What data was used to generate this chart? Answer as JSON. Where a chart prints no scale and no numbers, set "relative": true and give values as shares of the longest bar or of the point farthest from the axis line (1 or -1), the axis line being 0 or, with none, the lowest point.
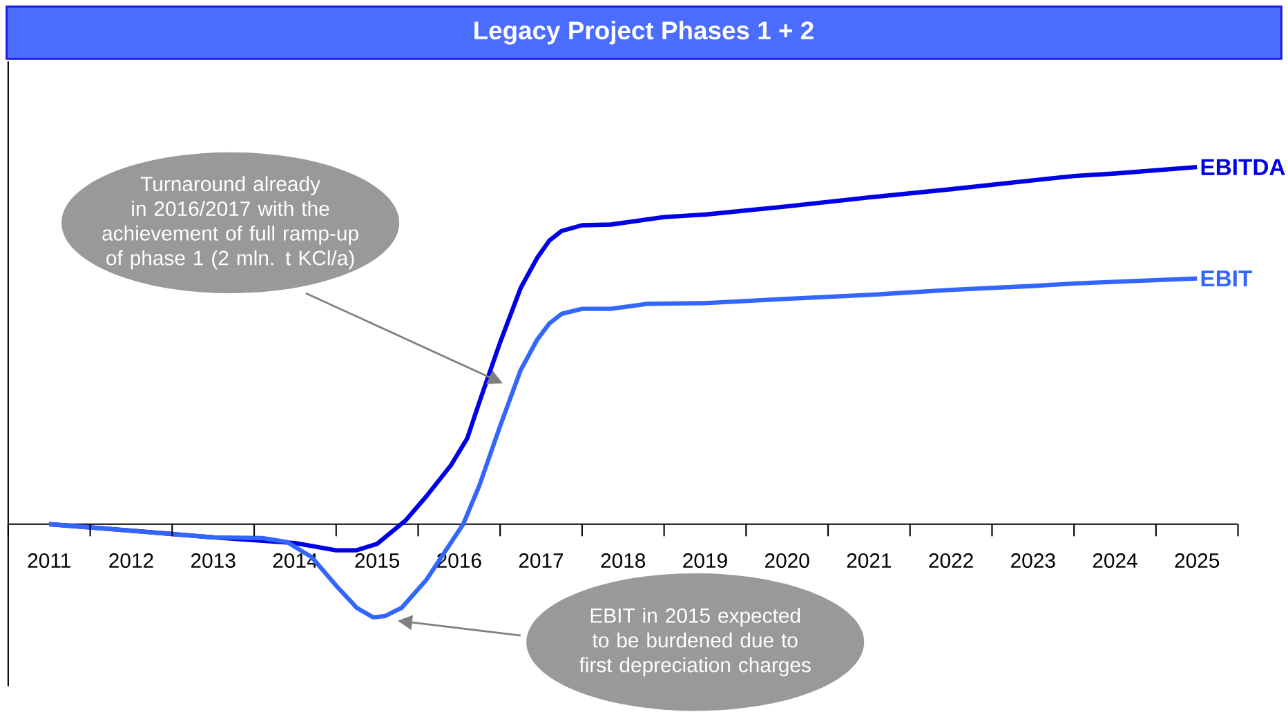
{
  "chart_data": {
    "type": "line",
    "title": "Legacy Project Phases 1 + 2",
    "relative": true,
    "legend": false,
    "marker": "none",
    "line_style": "solid",
    "tick_labels": "x",
    "xlim": [
      2010.5,
      2025.5
    ],
    "xticks": [
      2011,
      2012,
      2013,
      2014,
      2015,
      2016,
      2017,
      2018,
      2019,
      2020,
      2021,
      2022,
      2023,
      2024,
      2025
    ],
    "series": [
      {
        "name": "EBITDA",
        "color": "#0000e6",
        "x": [
          2011,
          2012,
          2013,
          2014,
          2014.5,
          2014.75,
          2015,
          2015.35,
          2015.6,
          2015.9,
          2016.1,
          2016.25,
          2016.5,
          2016.75,
          2016.95,
          2017.1,
          2017.25,
          2017.5,
          2017.85,
          2018.5,
          2019,
          2020,
          2021,
          2022,
          2023,
          2023.5,
          2024,
          2025
        ],
        "values": [
          0,
          -0.018,
          -0.037,
          -0.053,
          -0.073,
          -0.073,
          -0.055,
          0.011,
          0.078,
          0.165,
          0.241,
          0.344,
          0.509,
          0.661,
          0.745,
          0.794,
          0.821,
          0.837,
          0.839,
          0.86,
          0.867,
          0.89,
          0.915,
          0.938,
          0.963,
          0.975,
          0.982,
          1.0
        ]
      },
      {
        "name": "EBIT",
        "color": "#3366ff",
        "x": [
          2011,
          2013,
          2013.6,
          2013.9,
          2014.2,
          2014.5,
          2014.75,
          2014.95,
          2015.1,
          2015.3,
          2015.6,
          2015.85,
          2016.05,
          2016.25,
          2016.5,
          2016.75,
          2016.95,
          2017.1,
          2017.25,
          2017.5,
          2017.85,
          2018.3,
          2019,
          2020,
          2021,
          2022,
          2023,
          2023.5,
          2025
        ],
        "values": [
          0,
          -0.037,
          -0.039,
          -0.05,
          -0.092,
          -0.172,
          -0.234,
          -0.261,
          -0.257,
          -0.234,
          -0.156,
          -0.069,
          0,
          0.11,
          0.275,
          0.431,
          0.516,
          0.562,
          0.589,
          0.603,
          0.603,
          0.617,
          0.619,
          0.631,
          0.642,
          0.656,
          0.667,
          0.674,
          0.688
        ]
      }
    ],
    "annotations": [
      "Turnaround already in 2016/2017 with the achievement of full ramp-up of phase 1 (2 mln. t KCl/a)",
      "EBIT in 2015 expected to be burdened due to first depreciation charges"
    ]
  }
}
